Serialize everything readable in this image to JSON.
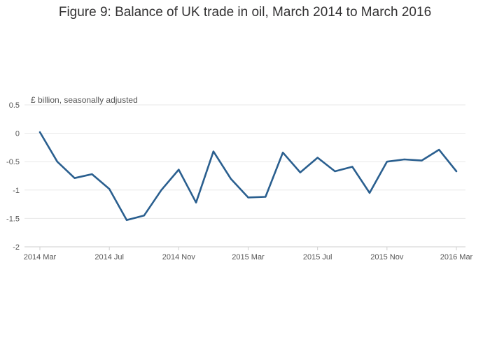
{
  "chart_data": {
    "type": "line",
    "title": "Figure 9: Balance of UK trade in oil, March 2014 to March 2016",
    "unit_label": "£ billion, seasonally adjusted",
    "xlabel": "",
    "ylabel": "",
    "ylim": [
      -2,
      0.5
    ],
    "y_ticks": [
      0.5,
      0,
      -0.5,
      -1,
      -1.5,
      -2
    ],
    "y_tick_labels": [
      "0.5",
      "0",
      "-0.5",
      "-1",
      "-1.5",
      "-2"
    ],
    "x_tick_labels": [
      "2014 Mar",
      "2014 Jul",
      "2014 Nov",
      "2015 Mar",
      "2015 Jul",
      "2015 Nov",
      "2016 Mar"
    ],
    "x_tick_indices": [
      0,
      4,
      8,
      12,
      16,
      20,
      24
    ],
    "grid": true,
    "line_color": "#2a5f8f",
    "categories": [
      "2014 Mar",
      "2014 Apr",
      "2014 May",
      "2014 Jun",
      "2014 Jul",
      "2014 Aug",
      "2014 Sep",
      "2014 Oct",
      "2014 Nov",
      "2014 Dec",
      "2015 Jan",
      "2015 Feb",
      "2015 Mar",
      "2015 Apr",
      "2015 May",
      "2015 Jun",
      "2015 Jul",
      "2015 Aug",
      "2015 Sep",
      "2015 Oct",
      "2015 Nov",
      "2015 Dec",
      "2016 Jan",
      "2016 Feb",
      "2016 Mar"
    ],
    "values": [
      0.02,
      -0.5,
      -0.79,
      -0.72,
      -0.98,
      -1.53,
      -1.45,
      -1.0,
      -0.64,
      -1.22,
      -0.32,
      -0.8,
      -1.13,
      -1.12,
      -0.34,
      -0.69,
      -0.43,
      -0.67,
      -0.59,
      -1.05,
      -0.5,
      -0.46,
      -0.48,
      -0.29,
      -0.67
    ]
  }
}
